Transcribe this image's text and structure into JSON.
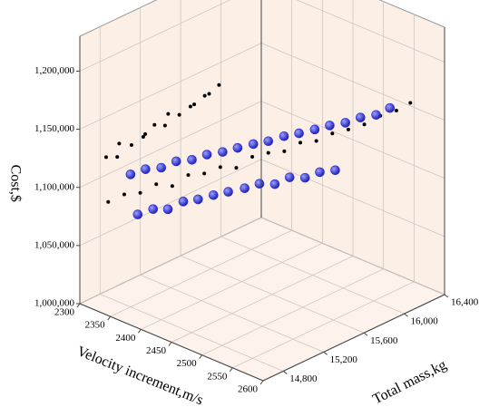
{
  "chart_data": {
    "type": "scatter3d",
    "x_label": "Velocity increment,m/s",
    "y_label": "Total mass,kg",
    "z_label": "Cost,$",
    "xlim": [
      2300,
      2600
    ],
    "xticks": [
      2300,
      2350,
      2400,
      2450,
      2500,
      2550,
      2600
    ],
    "ylim": [
      14600,
      16400
    ],
    "yticks": [
      {
        "value": 14800,
        "label": "14,800"
      },
      {
        "value": 15200,
        "label": "15,200"
      },
      {
        "value": 15600,
        "label": "15,600"
      },
      {
        "value": 16000,
        "label": "16,000"
      },
      {
        "value": 16400,
        "label": "16,400"
      }
    ],
    "zlim": [
      1000000,
      1230000
    ],
    "zticks": [
      {
        "value": 1000000,
        "label": "1,000,000"
      },
      {
        "value": 1050000,
        "label": "1,050,000"
      },
      {
        "value": 1100000,
        "label": "1,100,000"
      },
      {
        "value": 1150000,
        "label": "1,150,000"
      },
      {
        "value": 1200000,
        "label": "1,200,000"
      }
    ],
    "grid": true,
    "series": [
      {
        "color": "#000000",
        "x": [
          2310,
          2315,
          2305,
          2312,
          2318,
          2308,
          2310,
          2314,
          2306,
          2311,
          2316,
          2309,
          2313,
          2307,
          2310,
          2330,
          2343,
          2356,
          2369,
          2382,
          2395,
          2408,
          2421,
          2434,
          2447,
          2460,
          2473,
          2486,
          2499,
          2512,
          2525,
          2538,
          2551,
          2564,
          2577
        ],
        "y": [
          14800,
          14880,
          14960,
          15040,
          15120,
          15200,
          15280,
          15360,
          15440,
          15520,
          15600,
          15680,
          15760,
          15840,
          15920,
          14700,
          14780,
          14860,
          14940,
          15020,
          15100,
          15180,
          15260,
          15340,
          15420,
          15500,
          15580,
          15660,
          15740,
          15820,
          15900,
          15980,
          16060,
          16140,
          16200
        ],
        "z": [
          1120000,
          1118000,
          1124000,
          1121000,
          1126000,
          1123000,
          1128000,
          1125000,
          1130000,
          1127000,
          1132000,
          1129000,
          1134000,
          1131000,
          1136000,
          1090000,
          1096000,
          1097000,
          1104000,
          1102000,
          1111000,
          1112000,
          1117000,
          1116000,
          1125000,
          1128000,
          1129000,
          1136000,
          1137000,
          1143000,
          1146000,
          1150000,
          1157000,
          1161000,
          1168000
        ]
      },
      {
        "color": "#2a2ad0",
        "x": [
          2350,
          2362,
          2375,
          2387,
          2400,
          2412,
          2425,
          2437,
          2450,
          2462,
          2475,
          2487,
          2500,
          2512,
          2525,
          2537,
          2550,
          2560,
          2370,
          2382,
          2393,
          2405,
          2416,
          2428,
          2439,
          2451,
          2462,
          2474,
          2485,
          2497,
          2508,
          2520
        ],
        "y": [
          14800,
          14876,
          14953,
          15029,
          15106,
          15182,
          15259,
          15335,
          15412,
          15488,
          15565,
          15641,
          15718,
          15794,
          15871,
          15947,
          16024,
          16100,
          14750,
          14830,
          14910,
          14990,
          15070,
          15150,
          15230,
          15320,
          15400,
          15480,
          15560,
          15640,
          15720,
          15800
        ],
        "z": [
          1114000,
          1118000,
          1119000,
          1124000,
          1125000,
          1129000,
          1131000,
          1134000,
          1137000,
          1139000,
          1143000,
          1145000,
          1148000,
          1151000,
          1153000,
          1157000,
          1159000,
          1164000,
          1086000,
          1090000,
          1089000,
          1095000,
          1096000,
          1099000,
          1101000,
          1103000,
          1106000,
          1105000,
          1110000,
          1109000,
          1113000,
          1114000
        ]
      }
    ]
  }
}
